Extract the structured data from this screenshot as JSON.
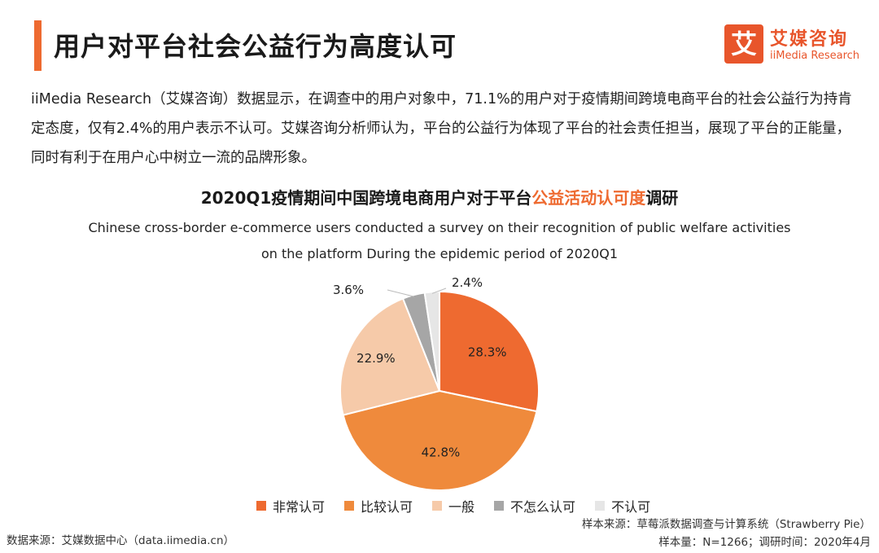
{
  "header": {
    "title": "用户对平台社会公益行为高度认可",
    "accent": "#ee6a30"
  },
  "logo": {
    "mark": "艾",
    "name_cn": "艾媒咨询",
    "name_en": "iiMedia Research"
  },
  "intro": {
    "text": "iiMedia Research（艾媒咨询）数据显示，在调查中的用户对象中，71.1%的用户对于疫情期间跨境电商平台的社会公益行为持肯定态度，仅有2.4%的用户表示不认可。艾媒咨询分析师认为，平台的公益行为体现了平台的社会责任担当，展现了平台的正能量，同时有利于在用户心中树立一流的品牌形象。"
  },
  "chart_data": {
    "type": "pie",
    "title_pre": "2020Q1疫情期间中国跨境电商用户对于平台",
    "title_hl": "公益活动认可度",
    "title_post": "调研",
    "subtitle_line1": "Chinese cross-border e-commerce users conducted a survey on their recognition of public welfare activities",
    "subtitle_line2": "on the platform During the epidemic period of 2020Q1",
    "slices": [
      {
        "label": "非常认可",
        "value": 28.3,
        "display": "28.3%",
        "color": "#ee6a30"
      },
      {
        "label": "比较认可",
        "value": 42.8,
        "display": "42.8%",
        "color": "#ef8a3c"
      },
      {
        "label": "一般",
        "value": 22.9,
        "display": "22.9%",
        "color": "#f6caa9"
      },
      {
        "label": "不怎么认可",
        "value": 3.6,
        "display": "3.6%",
        "color": "#a6a6a6"
      },
      {
        "label": "不认可",
        "value": 2.4,
        "display": "2.4%",
        "color": "#e6e6e6"
      }
    ],
    "legend_position": "bottom"
  },
  "footer": {
    "source_left": "数据来源：艾媒数据中心（data.iimedia.cn）",
    "sample_source": "样本来源：草莓派数据调查与计算系统（Strawberry Pie）",
    "sample_info": "样本量：N=1266；调研时间：2020年4月"
  }
}
